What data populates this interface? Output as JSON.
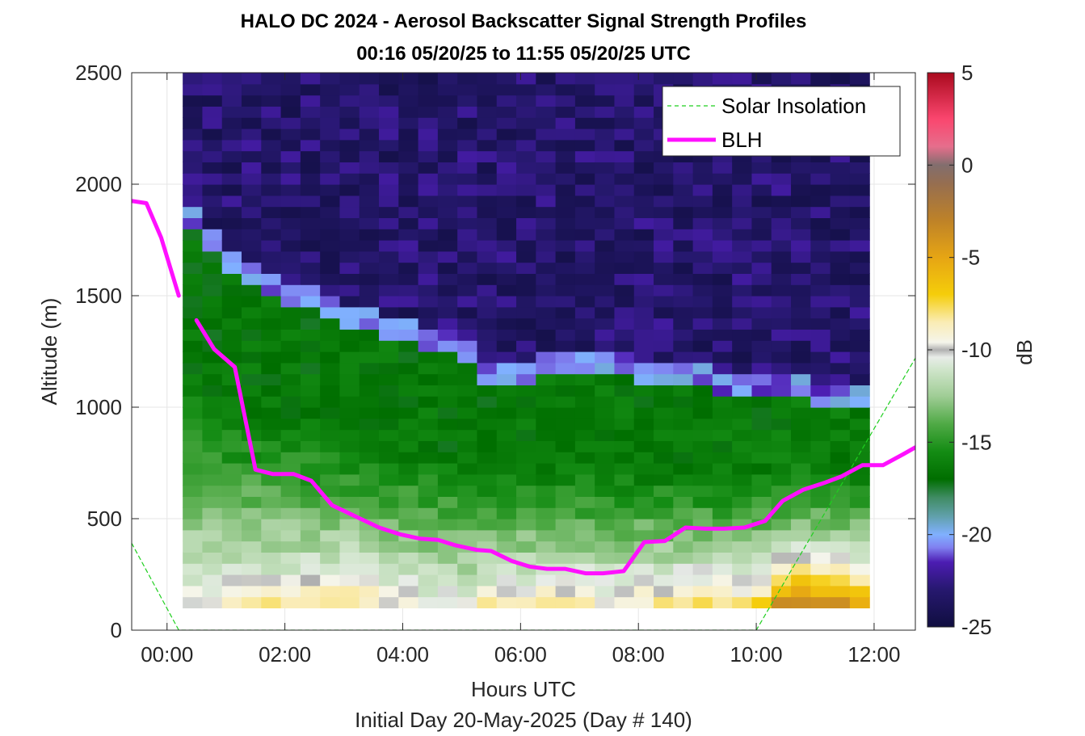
{
  "chart_data": {
    "type": "heatmap",
    "title": "HALO DC 2024 - Aerosol Backscatter Signal Strength Profiles",
    "subtitle": "00:16 05/20/25 to 11:55 05/20/25  UTC",
    "xlabel": "Hours UTC",
    "xlabel2": "Initial Day 20-May-2025 (Day # 140)",
    "ylabel": "Altitude (m)",
    "colorbar_label": "dB",
    "xlim": [
      -0.6,
      12.7
    ],
    "ylim": [
      0,
      2500
    ],
    "clim": [
      -25,
      5
    ],
    "x_ticks": [
      0,
      2,
      4,
      6,
      8,
      10,
      12
    ],
    "x_tick_labels": [
      "00:00",
      "02:00",
      "04:00",
      "06:00",
      "08:00",
      "10:00",
      "12:00"
    ],
    "y_ticks": [
      0,
      500,
      1000,
      1500,
      2000,
      2500
    ],
    "y_tick_labels": [
      "0",
      "500",
      "1000",
      "1500",
      "2000",
      "2500"
    ],
    "colorbar_ticks": [
      -25,
      -20,
      -15,
      -10,
      -5,
      0,
      5
    ],
    "colorbar_tick_labels": [
      "-25",
      "-20",
      "-15",
      "-10",
      "-5",
      "0",
      "5"
    ],
    "grid": true,
    "legend_position": "top-right",
    "heatmap": {
      "x_start": 0.266,
      "x_end": 11.92,
      "dx": 0.333,
      "y_start": 100,
      "y_end": 2500,
      "dy": 50,
      "profile_anchor_hours": [
        0.27,
        0.6,
        1.0,
        1.5,
        2.0,
        2.5,
        3.0,
        3.5,
        4.0,
        4.5,
        5.0,
        5.5,
        6.0,
        6.5,
        7.0,
        7.5,
        8.0,
        8.5,
        9.0,
        9.5,
        10.0,
        10.5,
        11.0,
        11.5,
        11.92
      ],
      "aerosol_top_m": [
        1850,
        1750,
        1620,
        1520,
        1470,
        1450,
        1380,
        1330,
        1300,
        1270,
        1200,
        1100,
        1100,
        1130,
        1140,
        1160,
        1120,
        1090,
        1080,
        1060,
        1050,
        1040,
        1020,
        1010,
        1010
      ],
      "surface_db": [
        -9,
        -9,
        -9,
        -8,
        -8,
        -8,
        -7,
        -8,
        -9,
        -10,
        -10,
        -8,
        -8,
        -8,
        -8,
        -9,
        -8,
        -8,
        -7,
        -7,
        -7,
        -2,
        -2,
        -3,
        -5
      ]
    },
    "series": [
      {
        "name": "Solar Insolation",
        "style": "dashed",
        "color": "#1fcf1f",
        "x": [
          -0.6,
          0.2,
          10.0,
          12.7
        ],
        "y": [
          390,
          0,
          0,
          1220
        ]
      },
      {
        "name": "BLH",
        "style": "solid",
        "color": "#ff10ff",
        "segments": [
          {
            "x": [
              -0.6,
              -0.35,
              -0.1,
              0.2
            ],
            "y": [
              1925,
              1915,
              1760,
              1500
            ]
          },
          {
            "x": [
              0.5,
              0.8,
              1.15,
              1.5,
              1.8,
              2.15,
              2.45,
              2.8,
              3.2,
              3.6,
              3.95,
              4.3,
              4.6,
              4.9,
              5.25,
              5.5,
              5.85,
              6.15,
              6.45,
              6.75,
              7.1,
              7.4,
              7.75,
              8.1,
              8.45,
              8.8,
              9.15,
              9.45,
              9.8,
              10.15,
              10.45,
              10.8,
              11.15,
              11.45,
              11.8,
              12.15,
              12.5,
              12.7
            ],
            "y": [
              1390,
              1260,
              1180,
              720,
              700,
              700,
              670,
              560,
              510,
              460,
              430,
              410,
              405,
              380,
              360,
              355,
              310,
              285,
              275,
              275,
              255,
              255,
              265,
              395,
              400,
              460,
              455,
              455,
              460,
              490,
              580,
              630,
              660,
              690,
              740,
              740,
              790,
              820
            ]
          }
        ]
      }
    ]
  },
  "legend": {
    "items": [
      {
        "label": "Solar Insolation",
        "color": "#1fcf1f",
        "style": "dashed"
      },
      {
        "label": "BLH",
        "color": "#ff10ff",
        "style": "solid"
      }
    ]
  }
}
